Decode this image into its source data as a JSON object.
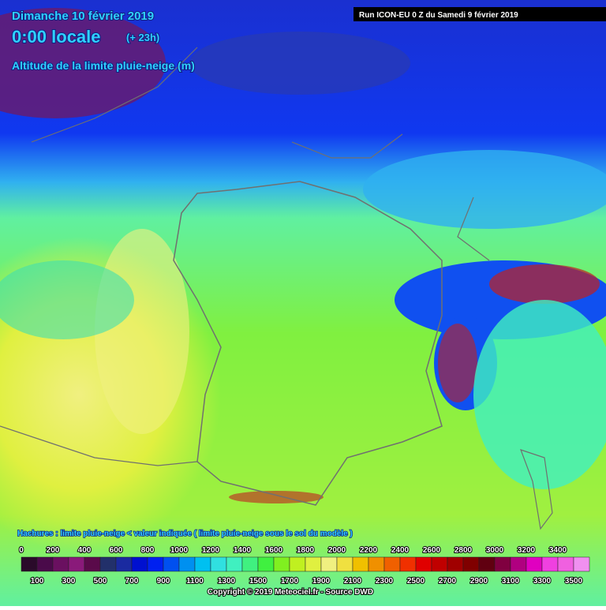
{
  "header": {
    "date": "Dimanche 10 février 2019",
    "time": "0:00 locale",
    "offset": "(+ 23h)",
    "parameter": "Altitude de la limite pluie-neige (m)",
    "run": "Run ICON-EU 0 Z du Samedi 9 février 2019"
  },
  "legend": {
    "note": "Hachures : limite pluie-neige < valeur indiquée ( limite pluie-neige sous le sol du modèle )",
    "top_labels": [
      0,
      200,
      400,
      600,
      800,
      1000,
      1200,
      1400,
      1600,
      1800,
      2000,
      2200,
      2400,
      2600,
      2800,
      3000,
      3200,
      3400
    ],
    "bottom_labels": [
      100,
      300,
      500,
      700,
      900,
      1100,
      1300,
      1500,
      1700,
      1900,
      2100,
      2300,
      2500,
      2700,
      2900,
      3100,
      3300,
      3500
    ],
    "colors": [
      "#2a0a2a",
      "#4a0a4a",
      "#6a1060",
      "#8a1a7a",
      "#5a0a4a",
      "#22306a",
      "#1a2aa0",
      "#0010d0",
      "#0020f0",
      "#0050f0",
      "#0090f0",
      "#00c0f0",
      "#30e0e0",
      "#40f0c0",
      "#40f080",
      "#40f040",
      "#80f020",
      "#c0f020",
      "#e0f040",
      "#f0f080",
      "#f0e040",
      "#f0c000",
      "#f09000",
      "#f06000",
      "#f03000",
      "#e00000",
      "#c00000",
      "#a00000",
      "#800000",
      "#600010",
      "#800040",
      "#b00080",
      "#e000c0",
      "#f040e0",
      "#f060e0",
      "#f090f0"
    ]
  },
  "footer": {
    "copyright": "Copyright © 2019 Meteociel.fr - Source DWD"
  }
}
